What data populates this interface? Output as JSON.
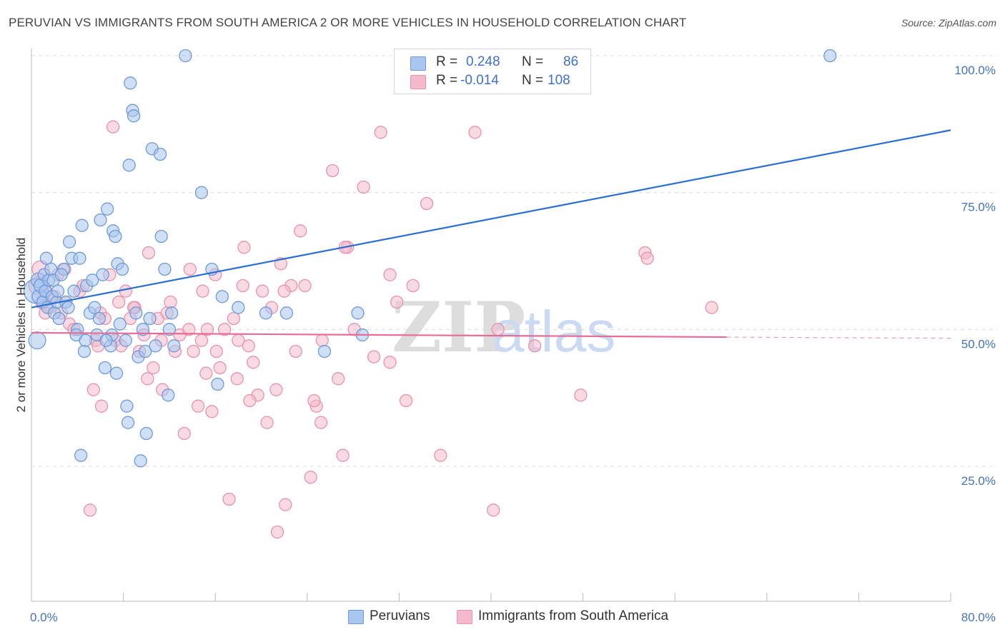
{
  "title": "PERUVIAN VS IMMIGRANTS FROM SOUTH AMERICA 2 OR MORE VEHICLES IN HOUSEHOLD CORRELATION CHART",
  "source": "Source: ZipAtlas.com",
  "watermark": {
    "zip": "ZIP",
    "atlas": "atlas"
  },
  "colors": {
    "blue_fill": "#a8c6ef",
    "blue_stroke": "#6f9ad9",
    "blue_line": "#2a6fd1",
    "pink_fill": "#f4bacb",
    "pink_stroke": "#e893ad",
    "pink_line": "#e86d95",
    "axis_text": "#4472c4",
    "grid": "#dcdcdc"
  },
  "legend": {
    "rows": [
      {
        "r_label": "R =",
        "r_value": "0.248",
        "n_label": "N =",
        "n_value": "86"
      },
      {
        "r_label": "R =",
        "r_value": "-0.014",
        "n_label": "N =",
        "n_value": "108"
      }
    ]
  },
  "bottom_legend": [
    "Peruvians",
    "Immigrants from South America"
  ],
  "chart_data": {
    "type": "scatter",
    "xlabel": "",
    "ylabel": "2 or more Vehicles in Household",
    "xlim": [
      0,
      80
    ],
    "ylim": [
      4,
      106
    ],
    "x_tick_labels": [
      "0.0%",
      "80.0%"
    ],
    "y_ticks": [
      25,
      50,
      75,
      100
    ],
    "y_tick_labels": [
      "25.0%",
      "50.0%",
      "75.0%",
      "100.0%"
    ],
    "grid": true,
    "series": [
      {
        "name": "Peruvians",
        "color": "blue",
        "R": 0.248,
        "N": 86,
        "trend": {
          "x": [
            0,
            80
          ],
          "y": [
            54.0,
            86.4
          ],
          "dashed_from": null
        },
        "points": [
          [
            0.4,
            57,
            20
          ],
          [
            0.5,
            48,
            14
          ],
          [
            0.6,
            59,
            12
          ],
          [
            0.7,
            56,
            12
          ],
          [
            0.8,
            58,
            11
          ],
          [
            1.0,
            55,
            10
          ],
          [
            1.1,
            60,
            10
          ],
          [
            1.2,
            57,
            10
          ],
          [
            1.4,
            54,
            10
          ],
          [
            1.5,
            59,
            10
          ],
          [
            1.7,
            61,
            10
          ],
          [
            1.8,
            56,
            10
          ],
          [
            2.0,
            53,
            10
          ],
          [
            2.2,
            55,
            10
          ],
          [
            2.4,
            52,
            10
          ],
          [
            2.8,
            61,
            10
          ],
          [
            3.0,
            55,
            10
          ],
          [
            3.2,
            54,
            10
          ],
          [
            3.3,
            66,
            10
          ],
          [
            3.5,
            63,
            10
          ],
          [
            3.7,
            57,
            10
          ],
          [
            4.0,
            50,
            10
          ],
          [
            4.2,
            63,
            10
          ],
          [
            4.4,
            69,
            10
          ],
          [
            4.6,
            46,
            10
          ],
          [
            4.8,
            58,
            10
          ],
          [
            5.1,
            53,
            10
          ],
          [
            5.3,
            59,
            10
          ],
          [
            5.5,
            54,
            10
          ],
          [
            5.7,
            49,
            10
          ],
          [
            6.0,
            70,
            10
          ],
          [
            6.2,
            60,
            10
          ],
          [
            6.4,
            43,
            10
          ],
          [
            6.6,
            72,
            10
          ],
          [
            6.9,
            47,
            10
          ],
          [
            7.0,
            49,
            10
          ],
          [
            7.1,
            68,
            10
          ],
          [
            7.3,
            67,
            10
          ],
          [
            7.5,
            62,
            10
          ],
          [
            7.7,
            51,
            10
          ],
          [
            7.9,
            61,
            10
          ],
          [
            8.2,
            48,
            10
          ],
          [
            8.3,
            36,
            10
          ],
          [
            8.4,
            33,
            10
          ],
          [
            8.5,
            80,
            10
          ],
          [
            8.6,
            95,
            10
          ],
          [
            8.8,
            90,
            10
          ],
          [
            8.9,
            89,
            10
          ],
          [
            9.3,
            45,
            10
          ],
          [
            9.5,
            26,
            10
          ],
          [
            9.7,
            50,
            10
          ],
          [
            9.9,
            46,
            10
          ],
          [
            10.0,
            31,
            10
          ],
          [
            10.3,
            52,
            10
          ],
          [
            10.5,
            83,
            10
          ],
          [
            11.2,
            82,
            10
          ],
          [
            11.3,
            67,
            10
          ],
          [
            11.6,
            61,
            10
          ],
          [
            11.9,
            38,
            10
          ],
          [
            12.0,
            50,
            10
          ],
          [
            12.2,
            53,
            10
          ],
          [
            12.4,
            47,
            10
          ],
          [
            13.4,
            100,
            10
          ],
          [
            14.8,
            75,
            10
          ],
          [
            15.7,
            61,
            10
          ],
          [
            16.2,
            40,
            10
          ],
          [
            16.6,
            56,
            10
          ],
          [
            18.0,
            54,
            10
          ],
          [
            20.4,
            53,
            10
          ],
          [
            22.2,
            53,
            10
          ],
          [
            25.5,
            46,
            10
          ],
          [
            28.4,
            53,
            10
          ],
          [
            28.8,
            49,
            10
          ],
          [
            1.9,
            59,
            10
          ],
          [
            2.6,
            60,
            10
          ],
          [
            3.9,
            49,
            10
          ],
          [
            4.7,
            48,
            10
          ],
          [
            5.9,
            52,
            10
          ],
          [
            6.5,
            48,
            10
          ],
          [
            9.1,
            53,
            10
          ],
          [
            2.3,
            57,
            10
          ],
          [
            10.8,
            47,
            10
          ],
          [
            7.4,
            42,
            10
          ],
          [
            4.3,
            27,
            10
          ],
          [
            1.3,
            63,
            10
          ],
          [
            69.5,
            100,
            10
          ]
        ]
      },
      {
        "name": "Immigrants from South America",
        "color": "pink",
        "R": -0.014,
        "N": 108,
        "trend": {
          "x": [
            0,
            60.5,
            80
          ],
          "y": [
            49.4,
            48.6,
            48.4
          ],
          "dashed_from": 60.5
        },
        "points": [
          [
            0.5,
            58,
            14
          ],
          [
            0.8,
            61,
            14
          ],
          [
            1.0,
            55,
            12
          ],
          [
            1.3,
            57,
            10
          ],
          [
            1.6,
            54,
            10
          ],
          [
            2.0,
            56,
            10
          ],
          [
            2.3,
            60,
            10
          ],
          [
            2.6,
            53,
            10
          ],
          [
            3.0,
            55,
            10
          ],
          [
            3.3,
            51,
            10
          ],
          [
            3.7,
            50,
            10
          ],
          [
            4.2,
            57,
            10
          ],
          [
            4.5,
            58,
            10
          ],
          [
            5.1,
            17,
            10
          ],
          [
            5.4,
            39,
            10
          ],
          [
            5.6,
            48,
            10
          ],
          [
            6.0,
            53,
            10
          ],
          [
            6.4,
            52,
            10
          ],
          [
            6.8,
            60,
            10
          ],
          [
            7.1,
            87,
            10
          ],
          [
            7.3,
            48,
            10
          ],
          [
            7.6,
            55,
            10
          ],
          [
            7.8,
            47,
            10
          ],
          [
            8.2,
            57,
            10
          ],
          [
            8.6,
            52,
            10
          ],
          [
            9.0,
            54,
            10
          ],
          [
            9.4,
            46,
            10
          ],
          [
            9.8,
            49,
            10
          ],
          [
            10.2,
            64,
            10
          ],
          [
            10.6,
            43,
            10
          ],
          [
            11.0,
            52,
            10
          ],
          [
            11.4,
            39,
            10
          ],
          [
            11.8,
            53,
            10
          ],
          [
            12.1,
            55,
            10
          ],
          [
            12.5,
            46,
            10
          ],
          [
            12.9,
            49,
            10
          ],
          [
            13.3,
            31,
            10
          ],
          [
            13.7,
            50,
            10
          ],
          [
            14.1,
            46,
            10
          ],
          [
            14.5,
            36,
            10
          ],
          [
            14.9,
            57,
            10
          ],
          [
            15.3,
            50,
            10
          ],
          [
            15.7,
            35,
            10
          ],
          [
            16.1,
            46,
            10
          ],
          [
            16.4,
            43,
            10
          ],
          [
            16.8,
            50,
            10
          ],
          [
            17.2,
            19,
            10
          ],
          [
            17.6,
            52,
            10
          ],
          [
            18.0,
            48,
            10
          ],
          [
            18.4,
            58,
            10
          ],
          [
            18.9,
            47,
            10
          ],
          [
            19.3,
            44,
            10
          ],
          [
            19.7,
            38,
            10
          ],
          [
            20.1,
            57,
            10
          ],
          [
            20.5,
            33,
            10
          ],
          [
            20.9,
            54,
            10
          ],
          [
            21.3,
            39,
            10
          ],
          [
            21.7,
            62,
            10
          ],
          [
            22.1,
            18,
            10
          ],
          [
            22.6,
            58,
            10
          ],
          [
            23.0,
            46,
            10
          ],
          [
            23.4,
            68,
            10
          ],
          [
            23.8,
            58,
            10
          ],
          [
            24.3,
            23,
            10
          ],
          [
            24.8,
            36,
            10
          ],
          [
            25.3,
            48,
            10
          ],
          [
            26.2,
            79,
            10
          ],
          [
            26.7,
            41,
            10
          ],
          [
            27.1,
            27,
            10
          ],
          [
            27.5,
            65,
            10
          ],
          [
            28.1,
            50,
            10
          ],
          [
            28.9,
            76,
            10
          ],
          [
            29.8,
            45,
            10
          ],
          [
            30.4,
            86,
            10
          ],
          [
            31.2,
            44,
            10
          ],
          [
            31.8,
            55,
            10
          ],
          [
            32.6,
            37,
            10
          ],
          [
            34.4,
            73,
            10
          ],
          [
            35.6,
            27,
            10
          ],
          [
            38.6,
            86,
            10
          ],
          [
            40.2,
            17,
            10
          ],
          [
            40.6,
            50,
            10
          ],
          [
            43.8,
            47,
            10
          ],
          [
            47.8,
            38,
            10
          ],
          [
            53.4,
            64,
            10
          ],
          [
            53.6,
            63,
            10
          ],
          [
            59.2,
            54,
            10
          ],
          [
            21.4,
            13,
            10
          ],
          [
            11.3,
            48,
            10
          ],
          [
            5.8,
            47,
            10
          ],
          [
            8.9,
            54,
            10
          ],
          [
            1.2,
            53,
            10
          ],
          [
            13.8,
            61,
            10
          ],
          [
            15.2,
            42,
            10
          ],
          [
            19.0,
            37,
            10
          ],
          [
            24.6,
            37,
            10
          ],
          [
            27.3,
            65,
            10
          ],
          [
            31.2,
            60,
            10
          ],
          [
            33.2,
            58,
            10
          ],
          [
            17.9,
            41,
            10
          ],
          [
            10.1,
            41,
            10
          ],
          [
            22.0,
            57,
            10
          ],
          [
            25.2,
            33,
            10
          ],
          [
            2.9,
            61,
            10
          ],
          [
            6.1,
            36,
            10
          ],
          [
            14.8,
            48,
            10
          ],
          [
            18.5,
            65,
            10
          ],
          [
            16.0,
            60,
            10
          ]
        ]
      }
    ]
  }
}
